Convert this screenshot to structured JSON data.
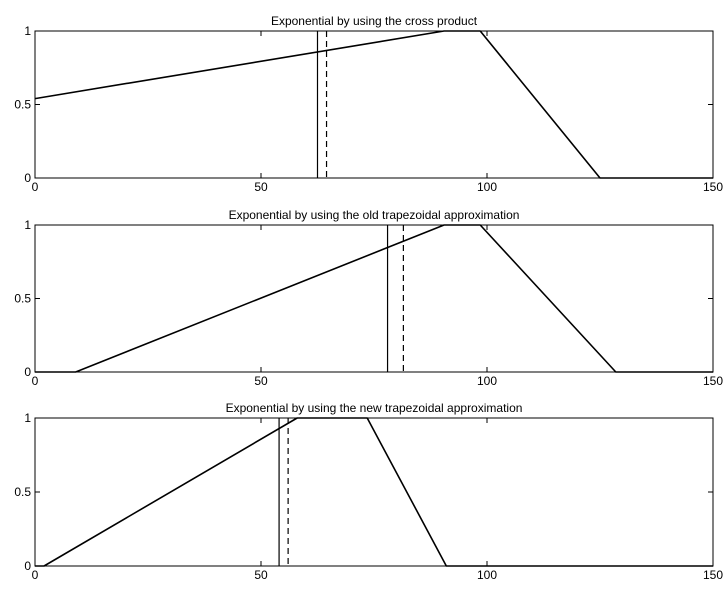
{
  "chart_data": [
    {
      "type": "line",
      "title": "Exponential by using the cross product",
      "xlim": [
        0,
        150
      ],
      "ylim": [
        0,
        1
      ],
      "x_ticks": [
        0,
        50,
        100,
        150
      ],
      "y_ticks": [
        0,
        0.5,
        1
      ],
      "x_tick_labels": [
        "0",
        "50",
        "100",
        "150"
      ],
      "y_tick_labels": [
        "0",
        "0.5",
        "1"
      ],
      "grid": false,
      "series": [
        {
          "points": [
            [
              0,
              0.54
            ],
            [
              90.5,
              1
            ],
            [
              98.5,
              1
            ],
            [
              125,
              0
            ],
            [
              150,
              0
            ]
          ],
          "style": "solid"
        }
      ],
      "vlines": [
        {
          "x": 62.5,
          "style": "solid"
        },
        {
          "x": 64.5,
          "style": "dashed"
        }
      ]
    },
    {
      "type": "line",
      "title": "Exponential by using the old trapezoidal approximation",
      "xlim": [
        0,
        150
      ],
      "ylim": [
        0,
        1
      ],
      "x_ticks": [
        0,
        50,
        100,
        150
      ],
      "y_ticks": [
        0,
        0.5,
        1
      ],
      "x_tick_labels": [
        "0",
        "50",
        "100",
        "150"
      ],
      "y_tick_labels": [
        "0",
        "0.5",
        "1"
      ],
      "grid": false,
      "series": [
        {
          "points": [
            [
              0,
              0
            ],
            [
              9,
              0
            ],
            [
              90.5,
              1
            ],
            [
              98.5,
              1
            ],
            [
              128.5,
              0
            ],
            [
              150,
              0
            ]
          ],
          "style": "solid"
        }
      ],
      "vlines": [
        {
          "x": 78,
          "style": "solid"
        },
        {
          "x": 81.5,
          "style": "dashed"
        }
      ]
    },
    {
      "type": "line",
      "title": "Exponential by using the new trapezoidal approximation",
      "xlim": [
        0,
        150
      ],
      "ylim": [
        0,
        1
      ],
      "x_ticks": [
        0,
        50,
        100,
        150
      ],
      "y_ticks": [
        0,
        0.5,
        1
      ],
      "x_tick_labels": [
        "0",
        "50",
        "100",
        "150"
      ],
      "y_tick_labels": [
        "0",
        "0.5",
        "1"
      ],
      "grid": false,
      "series": [
        {
          "points": [
            [
              0,
              0
            ],
            [
              2,
              0
            ],
            [
              58,
              1
            ],
            [
              73.5,
              1
            ],
            [
              91,
              0
            ],
            [
              150,
              0
            ]
          ],
          "style": "solid"
        }
      ],
      "vlines": [
        {
          "x": 54,
          "style": "solid"
        },
        {
          "x": 56,
          "style": "dashed"
        }
      ]
    }
  ]
}
